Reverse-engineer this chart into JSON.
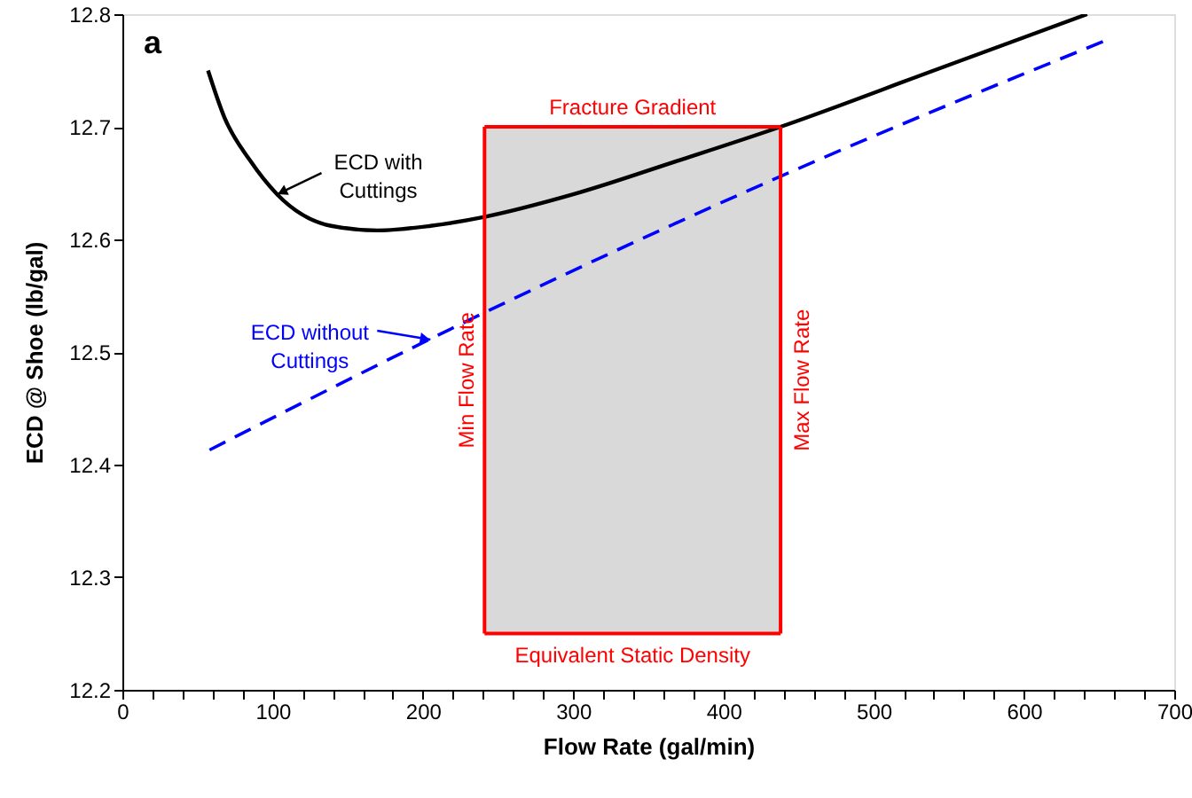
{
  "chart_data": {
    "type": "line",
    "xlabel": "Flow Rate (gal/min)",
    "ylabel": "ECD @ Shoe (lb/gal)",
    "series": [
      {
        "color": "#000000",
        "line_style": "solid",
        "x": [
          57,
          68,
          85,
          103,
          139,
          170,
          205,
          241,
          300,
          370,
          438,
          540,
          642
        ],
        "values": [
          12.75,
          12.708,
          12.67,
          12.64,
          12.612,
          12.608,
          12.612,
          12.62,
          12.64,
          12.67,
          12.7,
          12.75,
          12.8
        ]
      },
      {
        "color": "#0000ff",
        "line_style": "dashed",
        "x": [
          58,
          241,
          438,
          655
        ],
        "values": [
          12.413,
          12.535,
          12.656,
          12.777
        ]
      }
    ],
    "bands": [
      {
        "axis": "x",
        "from": 241,
        "to": 438,
        "color": "#d9d9d9"
      }
    ],
    "ref_lines": [
      {
        "axis": "y",
        "value": 12.7,
        "label": "Fracture Gradient",
        "color": "#ff0000"
      },
      {
        "axis": "y",
        "value": 12.25,
        "label": "Equivalent Static Density",
        "color": "#ff0000"
      },
      {
        "axis": "x",
        "value": 241,
        "label": "Min Flow Rate",
        "color": "#ff0000"
      },
      {
        "axis": "x",
        "value": 438,
        "label": "Max Flow Rate",
        "color": "#ff0000"
      }
    ],
    "annotations": [
      "a",
      {
        "text": "ECD with Cuttings",
        "x": 103,
        "y": 12.64
      },
      {
        "text": "ECD without Cuttings",
        "x": 205,
        "y": 12.511
      }
    ],
    "xlim": [
      0,
      700
    ],
    "ylim": [
      12.2,
      12.8
    ],
    "xticks": [
      0,
      {
        "value": 20,
        "label": null
      },
      {
        "value": 40,
        "label": null
      },
      {
        "value": 60,
        "label": null
      },
      {
        "value": 80,
        "label": null
      },
      100,
      {
        "value": 120,
        "label": null
      },
      {
        "value": 140,
        "label": null
      },
      {
        "value": 160,
        "label": null
      },
      {
        "value": 180,
        "label": null
      },
      200,
      {
        "value": 220,
        "label": null
      },
      {
        "value": 240,
        "label": null
      },
      {
        "value": 260,
        "label": null
      },
      {
        "value": 280,
        "label": null
      },
      300,
      {
        "value": 320,
        "label": null
      },
      {
        "value": 340,
        "label": null
      },
      {
        "value": 360,
        "label": null
      },
      {
        "value": 380,
        "label": null
      },
      400,
      {
        "value": 420,
        "label": null
      },
      {
        "value": 440,
        "label": null
      },
      {
        "value": 460,
        "label": null
      },
      {
        "value": 480,
        "label": null
      },
      500,
      {
        "value": 520,
        "label": null
      },
      {
        "value": 540,
        "label": null
      },
      {
        "value": 560,
        "label": null
      },
      {
        "value": 580,
        "label": null
      },
      600,
      {
        "value": 620,
        "label": null
      },
      {
        "value": 640,
        "label": null
      },
      {
        "value": 660,
        "label": null
      },
      {
        "value": 680,
        "label": null
      },
      700
    ],
    "yticks": [
      12.2,
      12.3,
      12.4,
      12.5,
      12.6,
      12.7,
      12.8
    ],
    "grid": false
  }
}
